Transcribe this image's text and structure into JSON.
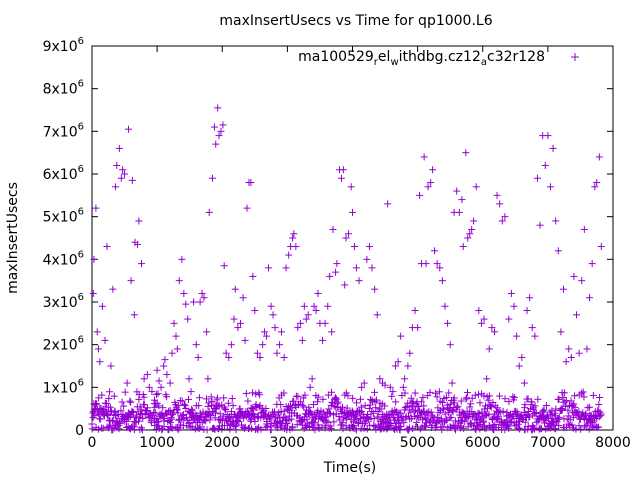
{
  "chart_data": {
    "type": "scatter",
    "title": "maxInsertUsecs vs Time for qp1000.L6",
    "xlabel": "Time(s)",
    "ylabel": "maxInsertUsecs",
    "xlim": [
      0,
      8000
    ],
    "ylim": [
      0,
      9000000
    ],
    "x_ticks": [
      "0",
      "1000",
      "2000",
      "3000",
      "4000",
      "5000",
      "6000",
      "7000",
      "8000"
    ],
    "y_ticks": [
      {
        "base": "0",
        "exp": ""
      },
      {
        "base": "1x10",
        "exp": "6"
      },
      {
        "base": "2x10",
        "exp": "6"
      },
      {
        "base": "3x10",
        "exp": "6"
      },
      {
        "base": "4x10",
        "exp": "6"
      },
      {
        "base": "5x10",
        "exp": "6"
      },
      {
        "base": "6x10",
        "exp": "6"
      },
      {
        "base": "7x10",
        "exp": "6"
      },
      {
        "base": "8x10",
        "exp": "6"
      },
      {
        "base": "9x10",
        "exp": "6"
      }
    ],
    "legend": {
      "placement": "top-right",
      "parts": [
        {
          "text": "ma100529",
          "sub": false
        },
        {
          "text": "r",
          "sub": true
        },
        {
          "text": "el",
          "sub": false
        },
        {
          "text": "w",
          "sub": true
        },
        {
          "text": "ithdbg.cz12",
          "sub": false
        },
        {
          "text": "a",
          "sub": true
        },
        {
          "text": "c",
          "sub": false
        },
        {
          "text": "32r128",
          "sub": false
        }
      ]
    },
    "grid": false,
    "color": "#9400d3",
    "series": [
      {
        "values": [
          [
            20,
            3200000
          ],
          [
            30,
            4000000
          ],
          [
            60,
            5200000
          ],
          [
            80,
            2300000
          ],
          [
            100,
            1900000
          ],
          [
            120,
            1600000
          ],
          [
            160,
            2900000
          ],
          [
            200,
            2100000
          ],
          [
            230,
            4300000
          ],
          [
            290,
            1500000
          ],
          [
            320,
            3300000
          ],
          [
            360,
            5700000
          ],
          [
            380,
            6200000
          ],
          [
            420,
            6600000
          ],
          [
            450,
            5900000
          ],
          [
            470,
            6100000
          ],
          [
            500,
            6000000
          ],
          [
            540,
            1100000
          ],
          [
            560,
            7050000
          ],
          [
            600,
            3500000
          ],
          [
            620,
            5850000
          ],
          [
            650,
            2700000
          ],
          [
            660,
            4400000
          ],
          [
            700,
            4350000
          ],
          [
            720,
            4900000
          ],
          [
            760,
            3900000
          ],
          [
            800,
            1200000
          ],
          [
            850,
            1300000
          ],
          [
            880,
            1000000
          ],
          [
            920,
            900000
          ],
          [
            960,
            700000
          ],
          [
            1000,
            1400000
          ],
          [
            1030,
            1150000
          ],
          [
            1060,
            1000000
          ],
          [
            1100,
            1500000
          ],
          [
            1120,
            1650000
          ],
          [
            1150,
            1300000
          ],
          [
            1200,
            1100000
          ],
          [
            1230,
            1800000
          ],
          [
            1260,
            2500000
          ],
          [
            1290,
            2200000
          ],
          [
            1310,
            1900000
          ],
          [
            1340,
            3500000
          ],
          [
            1380,
            4000000
          ],
          [
            1410,
            3200000
          ],
          [
            1440,
            2950000
          ],
          [
            1470,
            2600000
          ],
          [
            1490,
            1200000
          ],
          [
            1520,
            900000
          ],
          [
            1560,
            3000000
          ],
          [
            1600,
            2000000
          ],
          [
            1630,
            1700000
          ],
          [
            1660,
            3000000
          ],
          [
            1690,
            3200000
          ],
          [
            1720,
            3100000
          ],
          [
            1760,
            2300000
          ],
          [
            1780,
            1200000
          ],
          [
            1800,
            5100000
          ],
          [
            1850,
            5900000
          ],
          [
            1880,
            7100000
          ],
          [
            1900,
            6700000
          ],
          [
            1930,
            7550000
          ],
          [
            1950,
            6900000
          ],
          [
            1980,
            7000000
          ],
          [
            2010,
            7150000
          ],
          [
            2030,
            3850000
          ],
          [
            2060,
            1800000
          ],
          [
            2100,
            1700000
          ],
          [
            2140,
            2000000
          ],
          [
            2180,
            2600000
          ],
          [
            2200,
            3300000
          ],
          [
            2240,
            2400000
          ],
          [
            2280,
            2500000
          ],
          [
            2320,
            3100000
          ],
          [
            2350,
            2100000
          ],
          [
            2380,
            5200000
          ],
          [
            2410,
            5800000
          ],
          [
            2440,
            5800000
          ],
          [
            2470,
            3600000
          ],
          [
            2500,
            2800000
          ],
          [
            2540,
            1800000
          ],
          [
            2580,
            1700000
          ],
          [
            2620,
            2000000
          ],
          [
            2650,
            2300000
          ],
          [
            2680,
            2200000
          ],
          [
            2710,
            3800000
          ],
          [
            2750,
            2900000
          ],
          [
            2780,
            2700000
          ],
          [
            2810,
            2400000
          ],
          [
            2840,
            1800000
          ],
          [
            2880,
            2000000
          ],
          [
            2910,
            2300000
          ],
          [
            2950,
            1700000
          ],
          [
            2980,
            3800000
          ],
          [
            3020,
            4100000
          ],
          [
            3050,
            4300000
          ],
          [
            3080,
            4500000
          ],
          [
            3100,
            4600000
          ],
          [
            3130,
            4300000
          ],
          [
            3160,
            2400000
          ],
          [
            3200,
            2500000
          ],
          [
            3230,
            2100000
          ],
          [
            3260,
            2900000
          ],
          [
            3290,
            2600000
          ],
          [
            3320,
            2700000
          ],
          [
            3350,
            1000000
          ],
          [
            3380,
            1200000
          ],
          [
            3410,
            2900000
          ],
          [
            3440,
            2800000
          ],
          [
            3470,
            3200000
          ],
          [
            3500,
            2500000
          ],
          [
            3540,
            2100000
          ],
          [
            3580,
            2500000
          ],
          [
            3620,
            2900000
          ],
          [
            3650,
            3600000
          ],
          [
            3680,
            2300000
          ],
          [
            3700,
            4700000
          ],
          [
            3740,
            3700000
          ],
          [
            3760,
            3900000
          ],
          [
            3800,
            6100000
          ],
          [
            3830,
            5900000
          ],
          [
            3860,
            6100000
          ],
          [
            3880,
            3400000
          ],
          [
            3900,
            4500000
          ],
          [
            3940,
            4600000
          ],
          [
            3980,
            5700000
          ],
          [
            4000,
            5100000
          ],
          [
            4030,
            4300000
          ],
          [
            4060,
            3800000
          ],
          [
            4100,
            3500000
          ],
          [
            4140,
            1000000
          ],
          [
            4180,
            1100000
          ],
          [
            4220,
            4000000
          ],
          [
            4260,
            4300000
          ],
          [
            4300,
            3800000
          ],
          [
            4340,
            3300000
          ],
          [
            4380,
            2700000
          ],
          [
            4420,
            1200000
          ],
          [
            4460,
            1100000
          ],
          [
            4500,
            1050000
          ],
          [
            4540,
            5300000
          ],
          [
            4580,
            1000000
          ],
          [
            4620,
            900000
          ],
          [
            4660,
            1500000
          ],
          [
            4700,
            1600000
          ],
          [
            4740,
            2200000
          ],
          [
            4780,
            1000000
          ],
          [
            4800,
            1200000
          ],
          [
            4850,
            1500000
          ],
          [
            4880,
            1800000
          ],
          [
            4920,
            2400000
          ],
          [
            4960,
            2800000
          ],
          [
            5000,
            2400000
          ],
          [
            5030,
            5500000
          ],
          [
            5060,
            3900000
          ],
          [
            5100,
            6400000
          ],
          [
            5130,
            3900000
          ],
          [
            5160,
            5700000
          ],
          [
            5200,
            5800000
          ],
          [
            5230,
            6100000
          ],
          [
            5260,
            4200000
          ],
          [
            5300,
            3900000
          ],
          [
            5340,
            3800000
          ],
          [
            5380,
            3500000
          ],
          [
            5420,
            2900000
          ],
          [
            5460,
            2500000
          ],
          [
            5500,
            2000000
          ],
          [
            5530,
            1100000
          ],
          [
            5560,
            5100000
          ],
          [
            5600,
            5600000
          ],
          [
            5640,
            5100000
          ],
          [
            5680,
            5400000
          ],
          [
            5700,
            4300000
          ],
          [
            5740,
            6500000
          ],
          [
            5770,
            4500000
          ],
          [
            5800,
            4600000
          ],
          [
            5830,
            4700000
          ],
          [
            5860,
            4900000
          ],
          [
            5900,
            5700000
          ],
          [
            5940,
            2800000
          ],
          [
            5980,
            2500000
          ],
          [
            6020,
            2600000
          ],
          [
            6060,
            1200000
          ],
          [
            6100,
            1900000
          ],
          [
            6140,
            2400000
          ],
          [
            6180,
            2300000
          ],
          [
            6220,
            5500000
          ],
          [
            6260,
            5300000
          ],
          [
            6300,
            4900000
          ],
          [
            6340,
            5000000
          ],
          [
            6400,
            2600000
          ],
          [
            6440,
            3200000
          ],
          [
            6480,
            2900000
          ],
          [
            6520,
            2200000
          ],
          [
            6560,
            1500000
          ],
          [
            6600,
            1700000
          ],
          [
            6640,
            1100000
          ],
          [
            6680,
            2800000
          ],
          [
            6720,
            3100000
          ],
          [
            6760,
            2400000
          ],
          [
            6800,
            2200000
          ],
          [
            6840,
            5900000
          ],
          [
            6880,
            4800000
          ],
          [
            6920,
            6900000
          ],
          [
            6960,
            6200000
          ],
          [
            7000,
            6900000
          ],
          [
            7040,
            5700000
          ],
          [
            7080,
            6600000
          ],
          [
            7120,
            4900000
          ],
          [
            7160,
            4200000
          ],
          [
            7200,
            2300000
          ],
          [
            7240,
            3300000
          ],
          [
            7280,
            1600000
          ],
          [
            7320,
            1900000
          ],
          [
            7360,
            1700000
          ],
          [
            7400,
            3600000
          ],
          [
            7440,
            2700000
          ],
          [
            7480,
            1800000
          ],
          [
            7520,
            3500000
          ],
          [
            7560,
            4700000
          ],
          [
            7600,
            1900000
          ],
          [
            7640,
            3100000
          ],
          [
            7680,
            3900000
          ],
          [
            7720,
            5700000
          ],
          [
            7750,
            5800000
          ],
          [
            7790,
            6400000
          ],
          [
            7820,
            4300000
          ]
        ]
      }
    ]
  }
}
